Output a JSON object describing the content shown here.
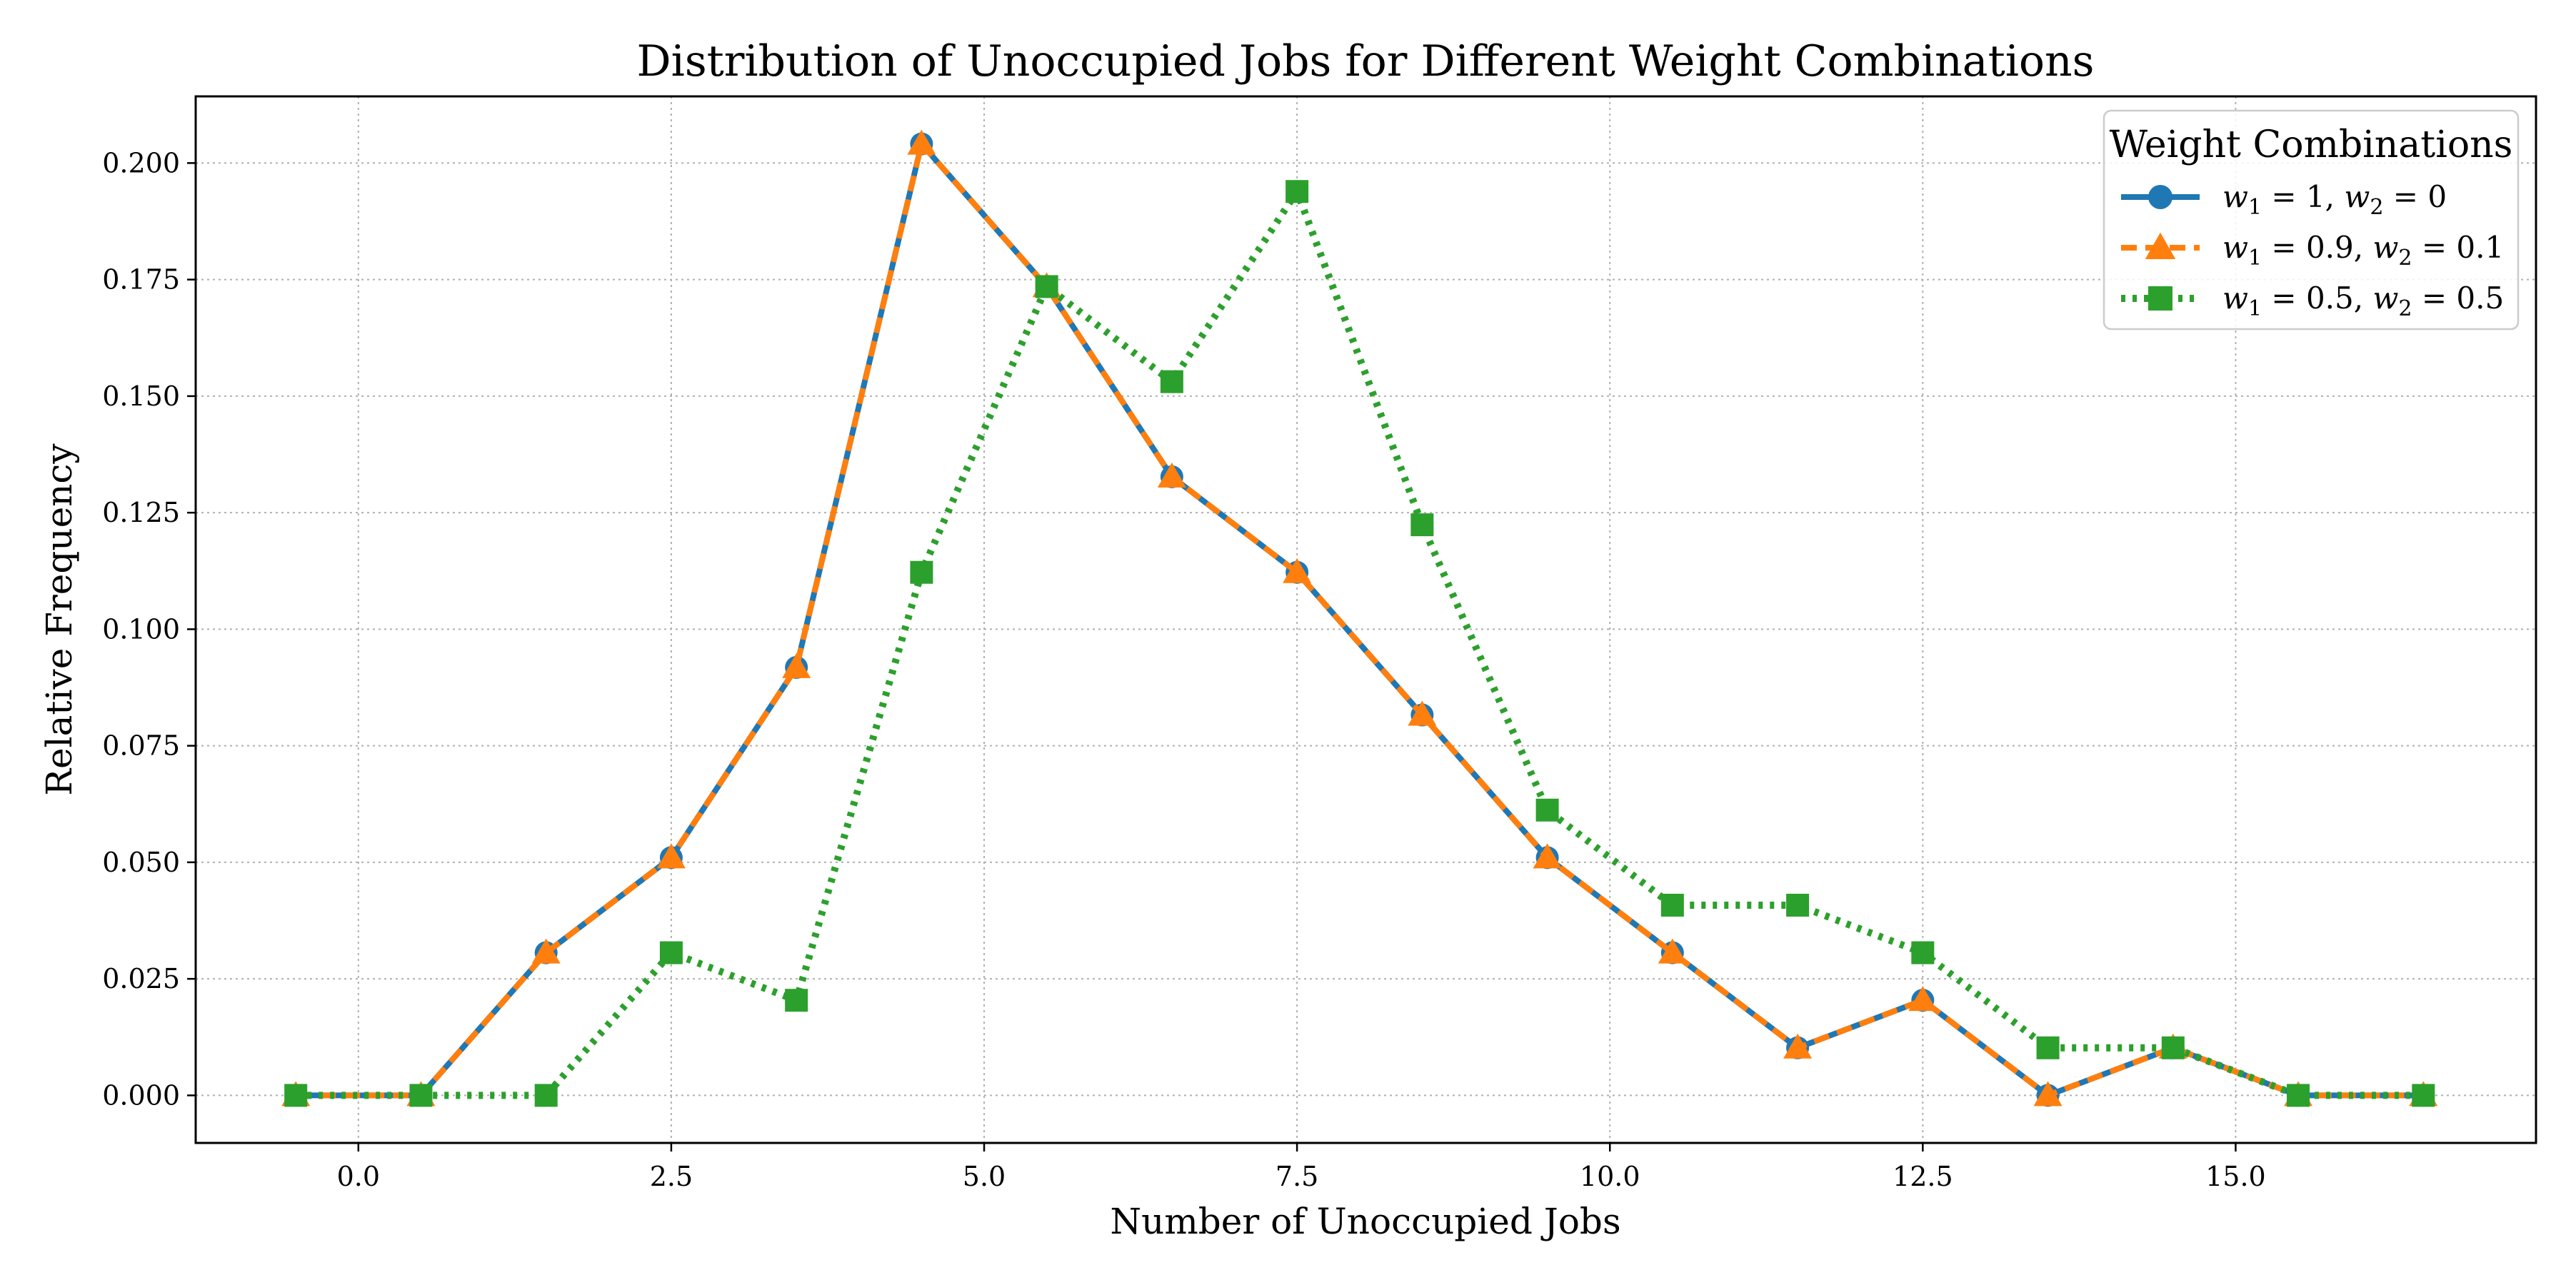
{
  "chart_data": {
    "type": "line",
    "title": "Distribution of Unoccupied Jobs for Different Weight Combinations",
    "xlabel": "Number of Unoccupied Jobs",
    "ylabel": "Relative Frequency",
    "x": [
      -0.5,
      0.5,
      1.5,
      2.5,
      3.5,
      4.5,
      5.5,
      6.5,
      7.5,
      8.5,
      9.5,
      10.5,
      11.5,
      12.5,
      13.5,
      14.5,
      15.5,
      16.5
    ],
    "xlim": [
      -1.3,
      17.4
    ],
    "ylim": [
      -0.0102,
      0.2143
    ],
    "xticks": [
      0.0,
      2.5,
      5.0,
      7.5,
      10.0,
      12.5,
      15.0
    ],
    "xtick_labels": [
      "0.0",
      "2.5",
      "5.0",
      "7.5",
      "10.0",
      "12.5",
      "15.0"
    ],
    "yticks": [
      0.0,
      0.025,
      0.05,
      0.075,
      0.1,
      0.125,
      0.15,
      0.175,
      0.2
    ],
    "ytick_labels": [
      "0.000",
      "0.025",
      "0.050",
      "0.075",
      "0.100",
      "0.125",
      "0.150",
      "0.175",
      "0.200"
    ],
    "grid": true,
    "legend": {
      "title": "Weight Combinations",
      "placement": "top-right"
    },
    "series": [
      {
        "name": "w1 = 1, w2 = 0",
        "label_parts": {
          "a": "1",
          "b": "0"
        },
        "color": "#1f77b4",
        "marker": "circle",
        "linestyle": "solid",
        "values": [
          0.0,
          0.0,
          0.0306,
          0.051,
          0.0918,
          0.2041,
          0.1735,
          0.1327,
          0.1122,
          0.0816,
          0.051,
          0.0306,
          0.0102,
          0.0204,
          0.0,
          0.0102,
          0.0,
          0.0
        ]
      },
      {
        "name": "w1 = 0.9, w2 = 0.1",
        "label_parts": {
          "a": "0.9",
          "b": "0.1"
        },
        "color": "#ff7f0e",
        "marker": "triangle",
        "linestyle": "dashed",
        "values": [
          0.0,
          0.0,
          0.0306,
          0.051,
          0.0918,
          0.2041,
          0.1735,
          0.1327,
          0.1122,
          0.0816,
          0.051,
          0.0306,
          0.0102,
          0.0204,
          0.0,
          0.0102,
          0.0,
          0.0
        ]
      },
      {
        "name": "w1 = 0.5, w2 = 0.5",
        "label_parts": {
          "a": "0.5",
          "b": "0.5"
        },
        "color": "#2ca02c",
        "marker": "square",
        "linestyle": "dotted",
        "values": [
          0.0,
          0.0,
          0.0,
          0.0306,
          0.0204,
          0.1122,
          0.1735,
          0.1531,
          0.1939,
          0.1224,
          0.0612,
          0.0408,
          0.0408,
          0.0306,
          0.0102,
          0.0102,
          0.0,
          0.0
        ]
      }
    ]
  }
}
